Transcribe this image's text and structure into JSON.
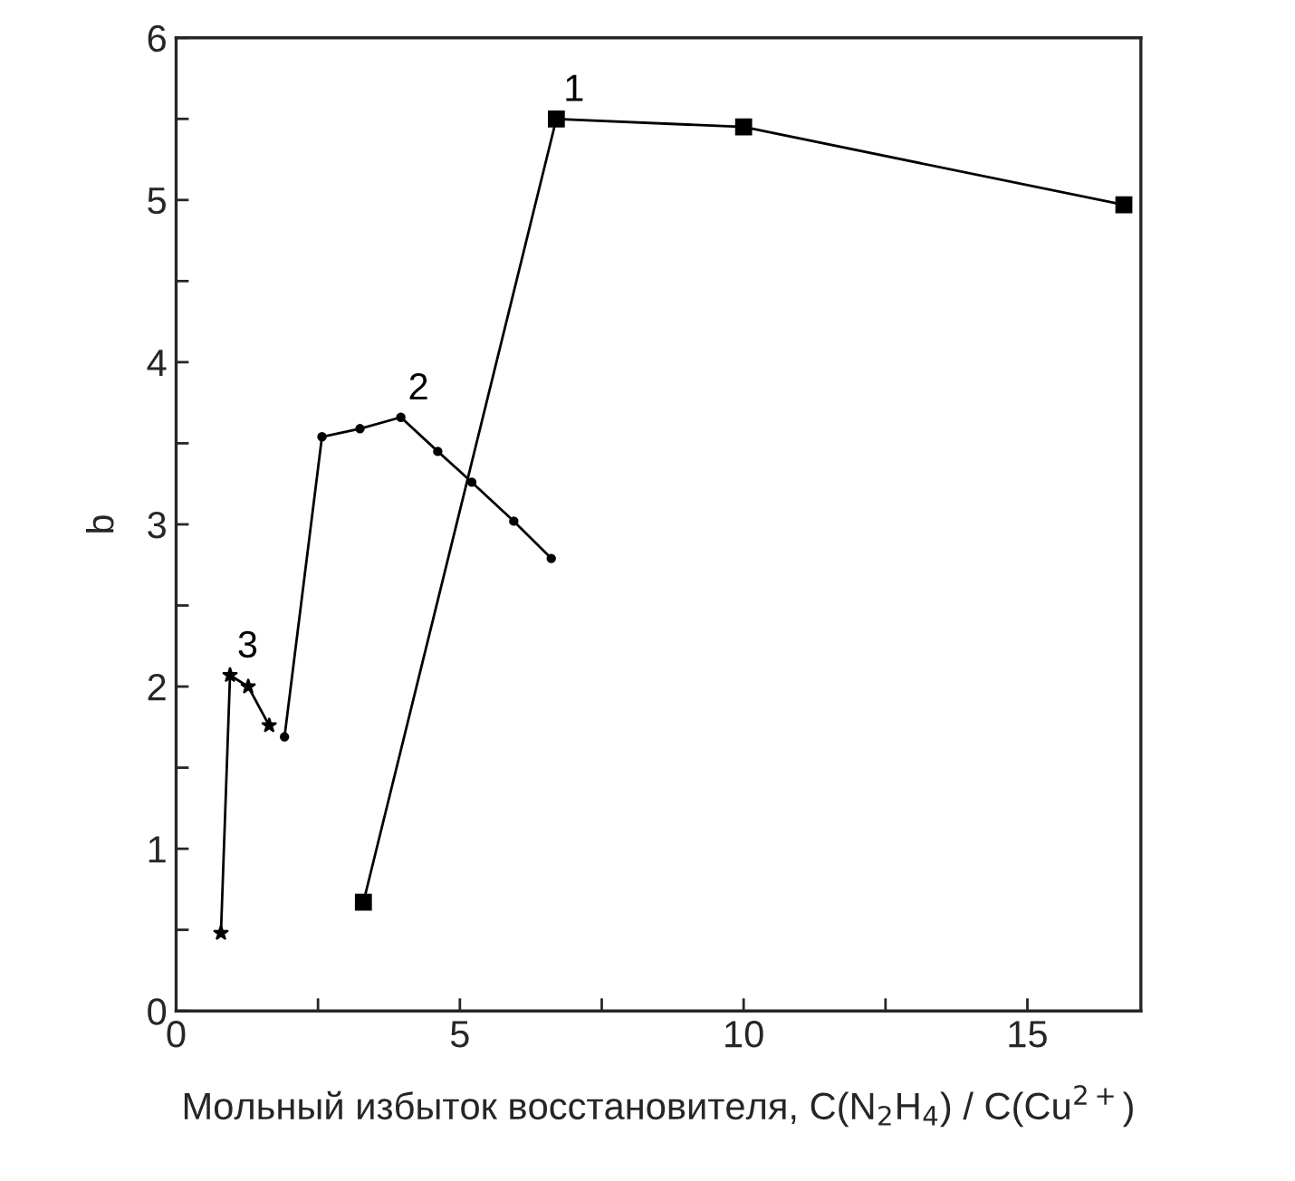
{
  "chart_data": {
    "type": "line",
    "xlabel": "Мольный избыток восстановителя, C(N$_{2}$H$_{4}$) / C(Cu$^{2+}$)",
    "ylabel": "b",
    "xlim": [
      0,
      17
    ],
    "xticks": [
      0,
      {
        "value": 2.5,
        "label": null
      },
      5,
      {
        "value": 7.5,
        "label": null
      },
      10,
      {
        "value": 12.5,
        "label": null
      },
      15
    ],
    "ylim": [
      0,
      6
    ],
    "yticks": [
      0,
      {
        "value": 0.5,
        "label": null
      },
      1,
      {
        "value": 1.5,
        "label": null
      },
      2,
      {
        "value": 2.5,
        "label": null
      },
      3,
      {
        "value": 3.5,
        "label": null
      },
      4,
      {
        "value": 4.5,
        "label": null
      },
      5,
      {
        "value": 5.5,
        "label": null
      },
      6
    ],
    "grid": false,
    "legend": false,
    "line_style": "solid",
    "series": [
      {
        "name": "1",
        "color": "#000000",
        "marker": "square",
        "x": [
          3.3,
          6.7,
          10,
          16.7
        ],
        "values": [
          0.67,
          5.5,
          5.45,
          4.97
        ]
      },
      {
        "name": "2",
        "color": "#000000",
        "marker": "circle",
        "x": [
          1.91,
          2.57,
          3.24,
          3.96,
          4.61,
          5.21,
          5.95,
          6.61
        ],
        "values": [
          1.69,
          3.54,
          3.59,
          3.66,
          3.45,
          3.26,
          3.02,
          2.79
        ]
      },
      {
        "name": "3",
        "color": "#000000",
        "marker": "star",
        "x": [
          0.79,
          0.95,
          1.27,
          1.64
        ],
        "values": [
          0.48,
          2.07,
          2.0,
          1.76
        ]
      }
    ]
  }
}
